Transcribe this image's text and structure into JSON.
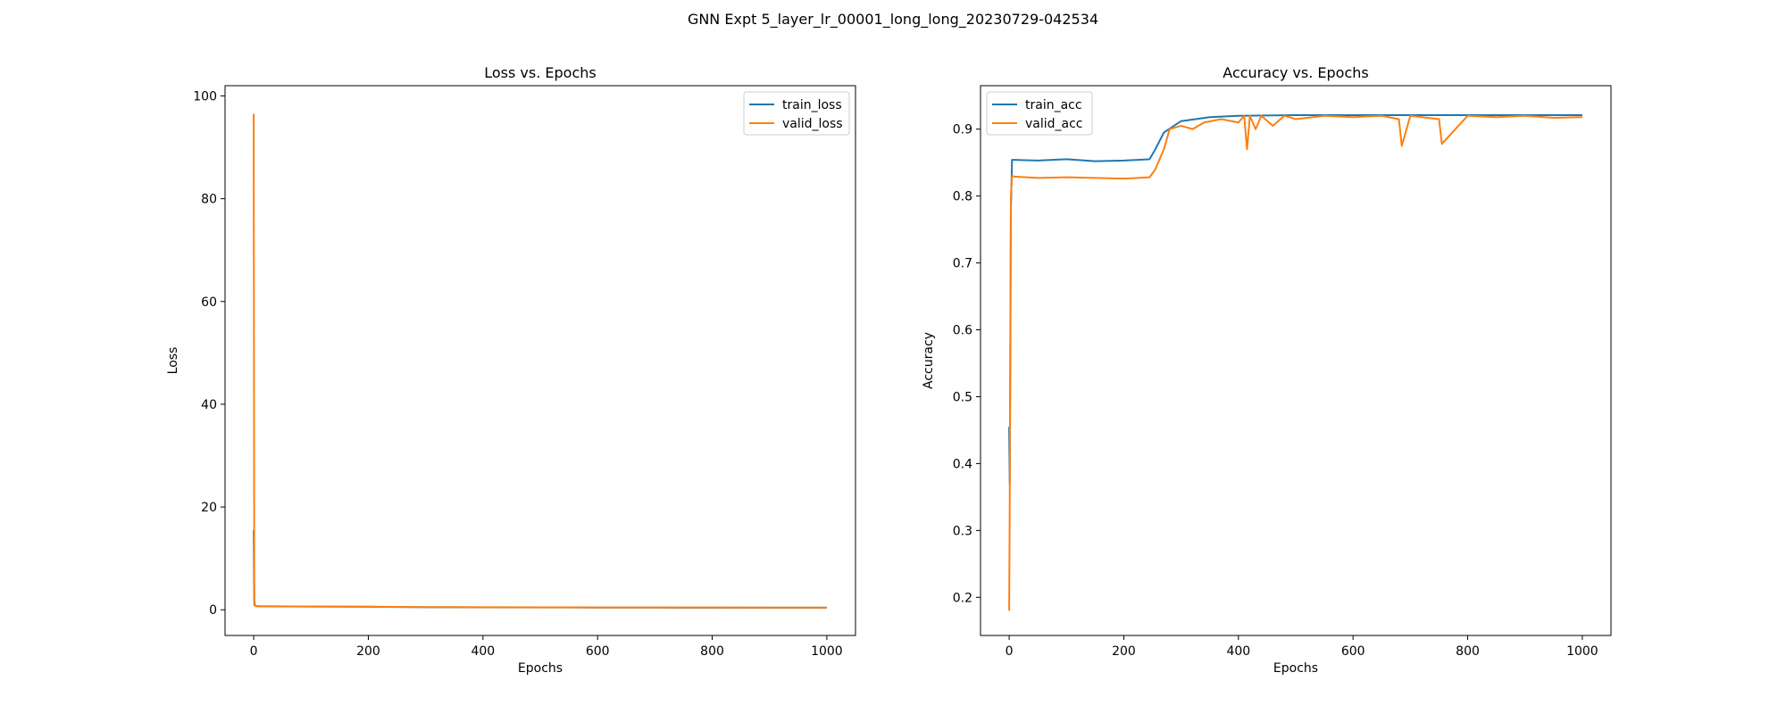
{
  "figure": {
    "suptitle": "GNN Expt 5_layer_lr_00001_long_long_20230729-042534"
  },
  "colors": {
    "train": "#1f77b4",
    "valid": "#ff7f0e",
    "axis": "#000000",
    "background": "#ffffff"
  },
  "chart_data": [
    {
      "type": "line",
      "title": "Loss vs. Epochs",
      "xlabel": "Epochs",
      "ylabel": "Loss",
      "xlim": [
        -50,
        1050
      ],
      "ylim": [
        -5,
        102
      ],
      "xticks": [
        0,
        200,
        400,
        600,
        800,
        1000
      ],
      "yticks": [
        0,
        20,
        40,
        60,
        80,
        100
      ],
      "legend_position": "top-right",
      "series": [
        {
          "name": "train_loss",
          "color": "#1f77b4",
          "x": [
            0,
            1,
            2,
            3,
            5,
            10,
            50,
            100,
            200,
            300,
            400,
            500,
            600,
            700,
            800,
            900,
            1000
          ],
          "y": [
            15.5,
            2.0,
            0.9,
            0.75,
            0.7,
            0.68,
            0.65,
            0.62,
            0.58,
            0.5,
            0.47,
            0.45,
            0.43,
            0.42,
            0.41,
            0.4,
            0.4
          ]
        },
        {
          "name": "valid_loss",
          "color": "#ff7f0e",
          "x": [
            0,
            1,
            2,
            3,
            5,
            10,
            50,
            100,
            200,
            300,
            400,
            500,
            600,
            700,
            800,
            900,
            1000
          ],
          "y": [
            96.5,
            0.9,
            0.8,
            0.75,
            0.72,
            0.7,
            0.66,
            0.63,
            0.6,
            0.52,
            0.5,
            0.48,
            0.46,
            0.45,
            0.44,
            0.43,
            0.43
          ]
        }
      ]
    },
    {
      "type": "line",
      "title": "Accuracy vs. Epochs",
      "xlabel": "Epochs",
      "ylabel": "Accuracy",
      "xlim": [
        -50,
        1050
      ],
      "ylim": [
        0.143,
        0.965
      ],
      "xticks": [
        0,
        200,
        400,
        600,
        800,
        1000
      ],
      "yticks": [
        0.2,
        0.3,
        0.4,
        0.5,
        0.6,
        0.7,
        0.8,
        0.9
      ],
      "legend_position": "top-left",
      "series": [
        {
          "name": "train_acc",
          "color": "#1f77b4",
          "x": [
            0,
            1,
            2,
            3,
            5,
            10,
            50,
            100,
            150,
            200,
            245,
            255,
            270,
            300,
            350,
            400,
            500,
            600,
            700,
            800,
            900,
            1000
          ],
          "y": [
            0.455,
            0.37,
            0.55,
            0.78,
            0.854,
            0.854,
            0.853,
            0.855,
            0.852,
            0.853,
            0.855,
            0.87,
            0.895,
            0.912,
            0.918,
            0.92,
            0.921,
            0.921,
            0.921,
            0.921,
            0.921,
            0.921
          ]
        },
        {
          "name": "valid_acc",
          "color": "#ff7f0e",
          "x": [
            0,
            1,
            2,
            3,
            5,
            10,
            50,
            100,
            150,
            200,
            245,
            255,
            265,
            270,
            280,
            300,
            320,
            340,
            370,
            400,
            410,
            415,
            420,
            430,
            440,
            460,
            480,
            500,
            550,
            600,
            650,
            680,
            685,
            700,
            750,
            755,
            800,
            850,
            900,
            950,
            1000
          ],
          "y": [
            0.18,
            0.34,
            0.6,
            0.8,
            0.83,
            0.829,
            0.827,
            0.828,
            0.827,
            0.826,
            0.828,
            0.84,
            0.86,
            0.87,
            0.9,
            0.905,
            0.9,
            0.91,
            0.915,
            0.91,
            0.92,
            0.87,
            0.92,
            0.9,
            0.92,
            0.905,
            0.92,
            0.915,
            0.92,
            0.918,
            0.92,
            0.915,
            0.875,
            0.92,
            0.915,
            0.878,
            0.92,
            0.918,
            0.92,
            0.917,
            0.918
          ]
        }
      ]
    }
  ]
}
